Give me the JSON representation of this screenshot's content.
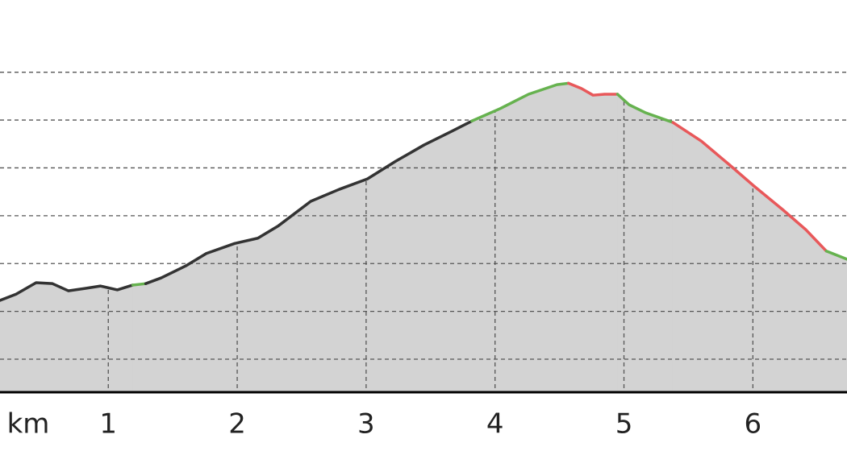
{
  "chart_data": {
    "type": "line",
    "x_label": "km",
    "xlim": [
      0.16,
      6.73
    ],
    "xticks": [
      1,
      2,
      3,
      4,
      5,
      6
    ],
    "ylim": [
      0.31,
      8.51
    ],
    "yticks": [
      1,
      2,
      3,
      4,
      5,
      6,
      7
    ],
    "ytick_labels": false,
    "grid": true,
    "area_color": "#d3d3d3",
    "series": [
      {
        "color": "#333333",
        "x": [
          0.16,
          0.285,
          0.44,
          0.567,
          0.69,
          0.82,
          0.94,
          1.07,
          1.19
        ],
        "values": [
          2.23,
          2.36,
          2.6,
          2.58,
          2.43,
          2.48,
          2.53,
          2.45,
          2.55
        ]
      },
      {
        "color": "#66b24f",
        "x": [
          1.19,
          1.29
        ],
        "values": [
          2.55,
          2.58
        ]
      },
      {
        "color": "#333333",
        "x": [
          1.29,
          1.41,
          1.6,
          1.76,
          1.98,
          2.16,
          2.32,
          2.57,
          2.79,
          3.01,
          3.23,
          3.45,
          3.66,
          3.82
        ],
        "values": [
          2.58,
          2.7,
          2.95,
          3.21,
          3.42,
          3.53,
          3.79,
          4.3,
          4.55,
          4.77,
          5.14,
          5.48,
          5.76,
          5.98
        ]
      },
      {
        "color": "#66b24f",
        "x": [
          3.82,
          4.04,
          4.26,
          4.48,
          4.57
        ],
        "values": [
          5.98,
          6.24,
          6.54,
          6.74,
          6.77
        ]
      },
      {
        "color": "#e8585a",
        "x": [
          4.57,
          4.67,
          4.76,
          4.85,
          4.95
        ],
        "values": [
          6.77,
          6.66,
          6.52,
          6.54,
          6.54
        ]
      },
      {
        "color": "#66b24f",
        "x": [
          4.95,
          5.04,
          5.17,
          5.38
        ],
        "values": [
          6.54,
          6.32,
          6.15,
          5.95
        ]
      },
      {
        "color": "#e8585a",
        "x": [
          5.38,
          5.6,
          5.82,
          6.0,
          6.23,
          6.41,
          6.57
        ],
        "values": [
          5.95,
          5.56,
          5.06,
          4.64,
          4.13,
          3.71,
          3.26
        ]
      },
      {
        "color": "#66b24f",
        "x": [
          6.57,
          6.73
        ],
        "values": [
          3.26,
          3.09
        ]
      }
    ]
  }
}
